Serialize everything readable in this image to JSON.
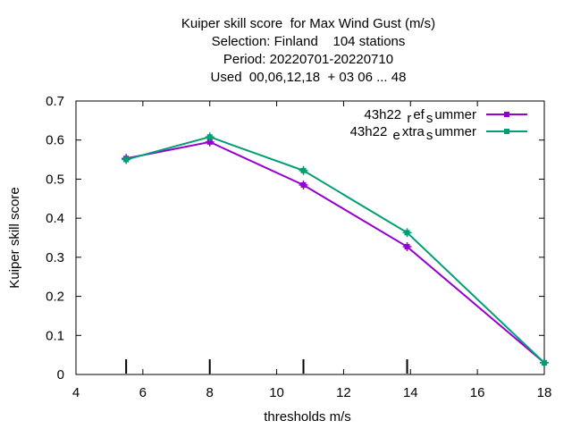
{
  "chart_data": {
    "type": "line",
    "title_lines": [
      "Kuiper skill score  for Max Wind Gust (m/s)",
      "Selection: Finland    104 stations",
      "Period: 20220701-20220710",
      "Used  00,06,12,18  + 03 06 ... 48"
    ],
    "xlabel": "thresholds m/s",
    "ylabel": "Kuiper skill score",
    "xlim": [
      4,
      18
    ],
    "ylim": [
      0,
      0.7
    ],
    "xticks": [
      4,
      6,
      8,
      10,
      12,
      14,
      16,
      18
    ],
    "yticks": [
      0,
      0.1,
      0.2,
      0.3,
      0.4,
      0.5,
      0.6,
      0.7
    ],
    "threshold_marks": [
      5.5,
      8,
      10.8,
      13.9
    ],
    "grid": false,
    "legend_position": "top-right",
    "series": [
      {
        "name": "43h22 _ref_summer",
        "legend_parts": [
          "43h22 ",
          "r",
          "ef",
          "s",
          "ummer"
        ],
        "color": "#9400d3",
        "x": [
          5.5,
          8,
          10.8,
          13.9,
          18
        ],
        "y": [
          0.553,
          0.595,
          0.485,
          0.327,
          0.03
        ]
      },
      {
        "name": "43h22 _extra_summer",
        "legend_parts": [
          "43h22 ",
          "e",
          "xtra",
          "s",
          "ummer"
        ],
        "color": "#009e73",
        "x": [
          5.5,
          8,
          10.8,
          13.9,
          18
        ],
        "y": [
          0.55,
          0.608,
          0.522,
          0.363,
          0.03
        ]
      }
    ]
  }
}
